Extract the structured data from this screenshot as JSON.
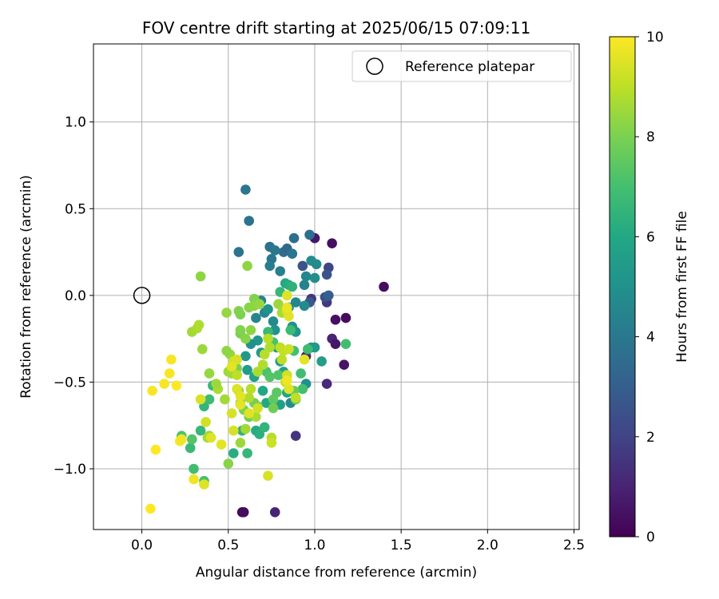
{
  "chart_data": {
    "type": "scatter",
    "title": "FOV centre drift starting at 2025/06/15 07:09:11",
    "xlabel": "Angular distance from reference (arcmin)",
    "ylabel": "Rotation from reference (arcmin)",
    "xlim": [
      -0.28,
      2.53
    ],
    "ylim": [
      -1.35,
      1.45
    ],
    "xticks": [
      0.0,
      0.5,
      1.0,
      1.5,
      2.0,
      2.5
    ],
    "xtick_labels": [
      "0.0",
      "0.5",
      "1.0",
      "1.5",
      "2.0",
      "2.5"
    ],
    "yticks": [
      -1.0,
      -0.5,
      0.0,
      0.5,
      1.0
    ],
    "ytick_labels": [
      "−1.0",
      "−0.5",
      "0.0",
      "0.5",
      "1.0"
    ],
    "grid": true,
    "legend": {
      "placement": "top-right",
      "entries": [
        "Reference platepar"
      ]
    },
    "reference_point": {
      "x": 0.0,
      "y": 0.0,
      "label": "Reference platepar"
    },
    "colorbar": {
      "label": "Hours from first FF file",
      "min": 0,
      "max": 10,
      "ticks": [
        0,
        2,
        4,
        6,
        8,
        10
      ],
      "tick_labels": [
        "0",
        "2",
        "4",
        "6",
        "8",
        "10"
      ],
      "colormap": "viridis"
    },
    "points": [
      [
        0.58,
        -1.25,
        0.2
      ],
      [
        0.59,
        -1.25,
        0.3
      ],
      [
        0.77,
        -1.25,
        1.0
      ],
      [
        1.4,
        0.05,
        0.3
      ],
      [
        1.1,
        0.3,
        0.4
      ],
      [
        1.0,
        0.33,
        0.6
      ],
      [
        1.12,
        -0.14,
        0.4
      ],
      [
        1.18,
        -0.13,
        0.3
      ],
      [
        1.17,
        -0.4,
        0.5
      ],
      [
        1.1,
        -0.25,
        1.0
      ],
      [
        1.12,
        -0.28,
        0.6
      ],
      [
        1.07,
        -0.51,
        1.2
      ],
      [
        0.89,
        -0.81,
        1.5
      ],
      [
        0.98,
        -0.02,
        1.5
      ],
      [
        1.07,
        -0.04,
        1.6
      ],
      [
        0.95,
        -0.35,
        1.2
      ],
      [
        1.08,
        0.16,
        2.0
      ],
      [
        1.06,
        -0.01,
        2.4
      ],
      [
        1.07,
        0.12,
        2.6
      ],
      [
        0.93,
        0.17,
        2.5
      ],
      [
        0.97,
        -0.04,
        2.8
      ],
      [
        1.08,
        0.0,
        3.0
      ],
      [
        0.97,
        0.35,
        3.6
      ],
      [
        0.6,
        0.61,
        3.9
      ],
      [
        0.62,
        0.43,
        3.8
      ],
      [
        0.56,
        0.25,
        3.8
      ],
      [
        0.74,
        0.28,
        3.7
      ],
      [
        0.82,
        0.25,
        3.5
      ],
      [
        0.84,
        0.27,
        3.4
      ],
      [
        0.88,
        0.33,
        3.6
      ],
      [
        0.87,
        0.24,
        3.9
      ],
      [
        0.77,
        0.26,
        4.0
      ],
      [
        0.75,
        0.21,
        4.0
      ],
      [
        0.74,
        0.17,
        4.2
      ],
      [
        0.8,
        0.14,
        4.3
      ],
      [
        0.94,
        0.06,
        4.4
      ],
      [
        0.95,
        0.11,
        4.6
      ],
      [
        0.98,
        0.2,
        4.8
      ],
      [
        1.01,
        0.18,
        4.7
      ],
      [
        1.0,
        0.1,
        4.9
      ],
      [
        0.89,
        -0.04,
        4.6
      ],
      [
        0.94,
        -0.06,
        4.7
      ],
      [
        0.85,
        -0.07,
        4.8
      ],
      [
        0.87,
        -0.18,
        5.0
      ],
      [
        0.89,
        -0.21,
        5.2
      ],
      [
        0.98,
        -0.3,
        5.3
      ],
      [
        1.0,
        -0.3,
        5.4
      ],
      [
        1.04,
        -0.38,
        5.5
      ],
      [
        0.95,
        -0.51,
        5.0
      ],
      [
        0.86,
        -0.62,
        4.8
      ],
      [
        0.66,
        -0.13,
        4.5
      ],
      [
        0.69,
        -0.03,
        4.4
      ],
      [
        0.71,
        -0.1,
        4.6
      ],
      [
        0.76,
        -0.15,
        4.7
      ],
      [
        0.73,
        -0.08,
        5.0
      ],
      [
        0.77,
        -0.2,
        5.1
      ],
      [
        0.78,
        -0.3,
        5.2
      ],
      [
        0.8,
        -0.38,
        5.4
      ],
      [
        0.82,
        -0.44,
        5.6
      ],
      [
        0.84,
        -0.56,
        5.8
      ],
      [
        0.8,
        -0.63,
        5.6
      ],
      [
        0.67,
        -0.26,
        5.2
      ],
      [
        0.69,
        -0.33,
        5.4
      ],
      [
        0.63,
        -0.28,
        5.0
      ],
      [
        0.6,
        -0.35,
        5.3
      ],
      [
        0.61,
        -0.43,
        5.5
      ],
      [
        0.65,
        -0.47,
        5.8
      ],
      [
        0.7,
        -0.55,
        5.9
      ],
      [
        0.72,
        -0.62,
        6.0
      ],
      [
        0.66,
        -0.78,
        6.1
      ],
      [
        0.68,
        -0.8,
        6.3
      ],
      [
        0.71,
        -0.76,
        6.5
      ],
      [
        0.58,
        -0.78,
        6.4
      ],
      [
        0.53,
        -0.91,
        6.2
      ],
      [
        0.61,
        -0.91,
        6.6
      ],
      [
        0.36,
        -0.64,
        6.5
      ],
      [
        0.34,
        -0.78,
        6.6
      ],
      [
        0.39,
        -0.6,
        6.8
      ],
      [
        0.41,
        -0.52,
        6.7
      ],
      [
        0.28,
        -0.88,
        6.7
      ],
      [
        0.3,
        -1.0,
        6.9
      ],
      [
        0.36,
        -1.07,
        7.0
      ],
      [
        0.23,
        -0.81,
        7.2
      ],
      [
        0.29,
        -0.83,
        7.3
      ],
      [
        0.83,
        0.07,
        6.0
      ],
      [
        0.85,
        0.06,
        6.2
      ],
      [
        0.87,
        0.05,
        6.4
      ],
      [
        0.8,
        0.02,
        6.6
      ],
      [
        0.86,
        -0.2,
        6.8
      ],
      [
        0.88,
        -0.32,
        7.0
      ],
      [
        0.92,
        -0.45,
        6.9
      ],
      [
        0.93,
        -0.54,
        7.0
      ],
      [
        0.96,
        -0.31,
        6.8
      ],
      [
        1.18,
        -0.28,
        6.9
      ],
      [
        0.73,
        -0.21,
        6.7
      ],
      [
        0.76,
        -0.27,
        7.1
      ],
      [
        0.72,
        -0.44,
        7.1
      ],
      [
        0.79,
        -0.46,
        7.2
      ],
      [
        0.74,
        -0.47,
        7.3
      ],
      [
        0.78,
        -0.56,
        7.4
      ],
      [
        0.76,
        -0.6,
        7.5
      ],
      [
        0.88,
        -0.55,
        7.6
      ],
      [
        0.89,
        -0.6,
        7.7
      ],
      [
        0.76,
        -0.65,
        7.8
      ],
      [
        0.67,
        -0.64,
        7.7
      ],
      [
        0.65,
        -0.62,
        7.9
      ],
      [
        0.62,
        -0.7,
        7.8
      ],
      [
        0.59,
        -0.66,
        8.0
      ],
      [
        0.56,
        -0.55,
        8.1
      ],
      [
        0.57,
        -0.62,
        8.2
      ],
      [
        0.55,
        -0.42,
        8.0
      ],
      [
        0.57,
        -0.22,
        7.9
      ],
      [
        0.57,
        -0.2,
        8.1
      ],
      [
        0.6,
        -0.25,
        8.2
      ],
      [
        0.63,
        -0.2,
        8.3
      ],
      [
        0.57,
        -0.11,
        8.0
      ],
      [
        0.56,
        -0.09,
        8.1
      ],
      [
        0.62,
        -0.07,
        8.2
      ],
      [
        0.65,
        -0.02,
        8.1
      ],
      [
        0.65,
        -0.06,
        8.3
      ],
      [
        0.68,
        -0.05,
        8.4
      ],
      [
        0.61,
        0.17,
        8.3
      ],
      [
        0.34,
        0.11,
        8.3
      ],
      [
        0.49,
        -0.1,
        8.4
      ],
      [
        0.51,
        -0.34,
        8.4
      ],
      [
        0.49,
        -0.32,
        8.3
      ],
      [
        0.52,
        -0.45,
        8.5
      ],
      [
        0.5,
        -0.44,
        8.6
      ],
      [
        0.48,
        -0.6,
        8.6
      ],
      [
        0.44,
        -0.54,
        8.7
      ],
      [
        0.43,
        -0.51,
        8.5
      ],
      [
        0.39,
        -0.45,
        8.4
      ],
      [
        0.35,
        -0.31,
        8.5
      ],
      [
        0.29,
        -0.21,
        8.6
      ],
      [
        0.32,
        -0.19,
        8.7
      ],
      [
        0.33,
        -0.17,
        8.8
      ],
      [
        0.39,
        -0.81,
        8.4
      ],
      [
        0.38,
        -0.82,
        8.6
      ],
      [
        0.5,
        -0.97,
        8.2
      ],
      [
        0.57,
        -0.85,
        8.5
      ],
      [
        0.6,
        -0.77,
        8.6
      ],
      [
        0.66,
        -0.7,
        8.7
      ],
      [
        0.62,
        -0.59,
        8.8
      ],
      [
        0.63,
        -0.54,
        8.9
      ],
      [
        0.67,
        -0.44,
        8.7
      ],
      [
        0.7,
        -0.4,
        8.8
      ],
      [
        0.71,
        -0.34,
        8.9
      ],
      [
        0.74,
        -0.3,
        8.8
      ],
      [
        0.73,
        -0.25,
        8.9
      ],
      [
        0.79,
        -0.05,
        8.5
      ],
      [
        0.81,
        -0.1,
        8.7
      ],
      [
        0.8,
        -0.3,
        9.0
      ],
      [
        0.82,
        -0.32,
        9.1
      ],
      [
        0.85,
        -0.31,
        9.2
      ],
      [
        0.81,
        -0.37,
        9.0
      ],
      [
        0.83,
        -0.5,
        9.2
      ],
      [
        0.84,
        -0.46,
        9.3
      ],
      [
        0.85,
        -0.54,
        9.5
      ],
      [
        0.75,
        -0.82,
        8.9
      ],
      [
        0.75,
        -0.85,
        9.2
      ],
      [
        0.67,
        -0.65,
        9.3
      ],
      [
        0.62,
        -0.68,
        9.5
      ],
      [
        0.52,
        -0.68,
        9.4
      ],
      [
        0.57,
        -0.58,
        9.6
      ],
      [
        0.57,
        -0.63,
        9.6
      ],
      [
        0.53,
        -0.38,
        9.3
      ],
      [
        0.55,
        -0.37,
        9.4
      ],
      [
        0.55,
        -0.54,
        9.5
      ],
      [
        0.55,
        -0.46,
        9.0
      ],
      [
        0.52,
        -0.41,
        9.6
      ],
      [
        0.53,
        -0.78,
        9.4
      ],
      [
        0.46,
        -0.86,
        9.6
      ],
      [
        0.37,
        -0.73,
        9.3
      ],
      [
        0.4,
        -0.82,
        9.5
      ],
      [
        0.34,
        -0.6,
        9.4
      ],
      [
        0.36,
        -1.09,
        9.5
      ],
      [
        0.3,
        -1.06,
        9.8
      ],
      [
        0.22,
        -0.84,
        9.9
      ],
      [
        0.23,
        -0.83,
        9.8
      ],
      [
        0.17,
        -0.37,
        9.9
      ],
      [
        0.16,
        -0.45,
        9.9
      ],
      [
        0.13,
        -0.51,
        9.9
      ],
      [
        0.2,
        -0.52,
        10.0
      ],
      [
        0.06,
        -0.55,
        9.9
      ],
      [
        0.08,
        -0.89,
        10.0
      ],
      [
        0.05,
        -1.23,
        10.0
      ],
      [
        0.73,
        -1.04,
        9.4
      ],
      [
        0.84,
        0.0,
        9.5
      ],
      [
        0.85,
        -0.12,
        9.6
      ],
      [
        0.84,
        -0.09,
        9.5
      ],
      [
        0.84,
        -0.07,
        9.7
      ],
      [
        0.84,
        -0.49,
        9.8
      ],
      [
        0.94,
        -0.37,
        9.6
      ],
      [
        0.89,
        -0.59,
        9.0
      ]
    ]
  }
}
